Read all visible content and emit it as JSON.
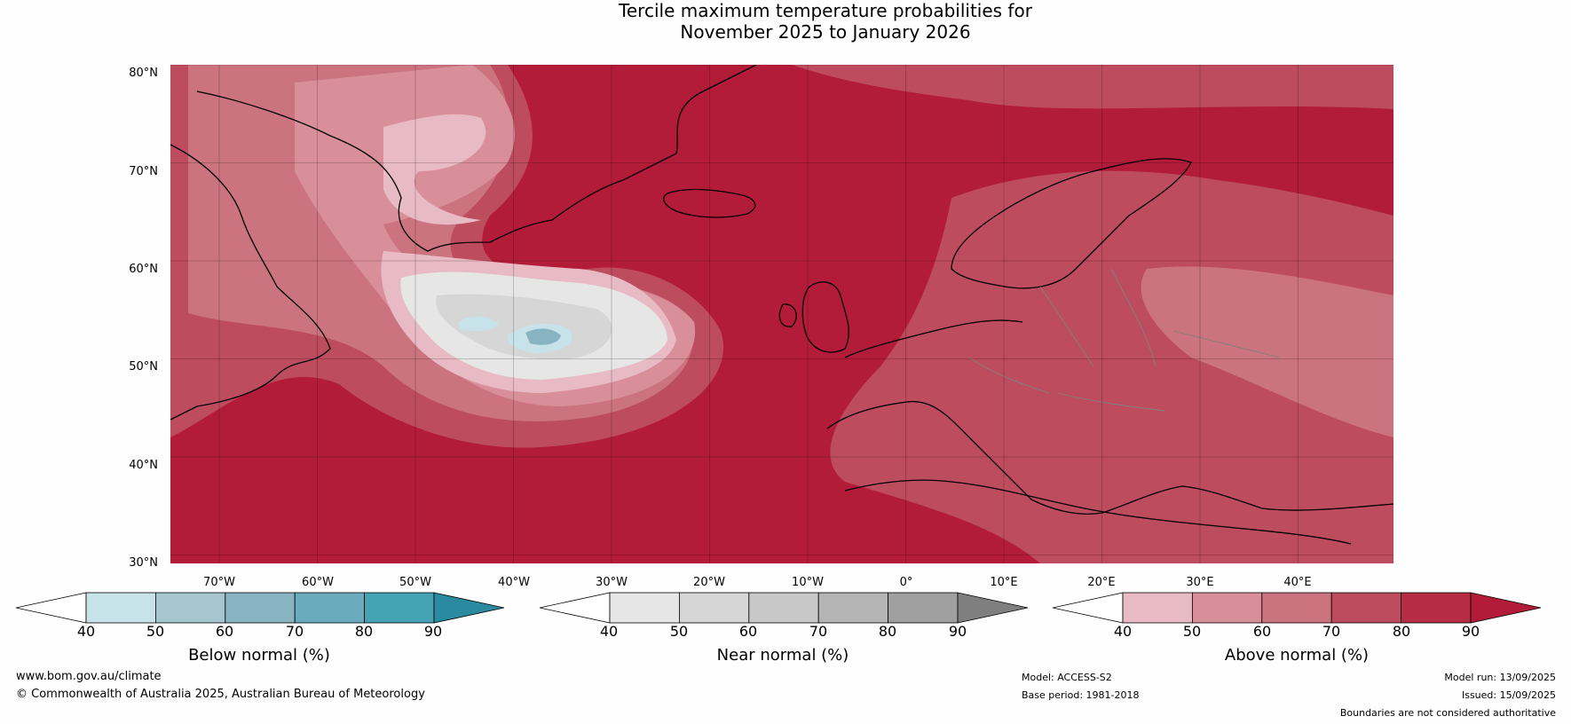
{
  "title": {
    "line1": "Tercile maximum temperature probabilities for",
    "line2": "November 2025 to January 2026"
  },
  "map": {
    "background_color": "#b31c39",
    "lat_labels": [
      "80°N",
      "70°N",
      "60°N",
      "50°N",
      "40°N",
      "30°N"
    ],
    "lon_labels": [
      "70°W",
      "60°W",
      "50°W",
      "40°W",
      "30°W",
      "20°W",
      "10°W",
      "0°",
      "10°E",
      "20°E",
      "30°E",
      "40°E"
    ]
  },
  "colorbars": [
    {
      "name": "below",
      "title": "Below normal (%)",
      "ticks": [
        "40",
        "50",
        "60",
        "70",
        "80",
        "90"
      ],
      "colors": [
        "#ffffff",
        "#c8e2ea",
        "#a5c6ce",
        "#88b3c0",
        "#6aacbd",
        "#46a3b3",
        "#2a8ba0"
      ]
    },
    {
      "name": "near",
      "title": "Near normal (%)",
      "ticks": [
        "40",
        "50",
        "60",
        "70",
        "80",
        "90"
      ],
      "colors": [
        "#ffffff",
        "#e6e6e6",
        "#d6d6d6",
        "#c8c8c8",
        "#b4b4b4",
        "#9f9f9f",
        "#7f7f7f"
      ]
    },
    {
      "name": "above",
      "title": "Above normal (%)",
      "ticks": [
        "40",
        "50",
        "60",
        "70",
        "80",
        "90"
      ],
      "colors": [
        "#ffffff",
        "#e8bac3",
        "#d88f9a",
        "#cb737f",
        "#bd4c5f",
        "#b62d43",
        "#b31c39"
      ]
    }
  ],
  "footer": {
    "website": "www.bom.gov.au/climate",
    "copyright": "© Commonwealth of Australia 2025, Australian Bureau of Meteorology",
    "model": "Model: ACCESS-S2",
    "base_period": "Base period: 1981-2018",
    "model_run": "Model run: 13/09/2025",
    "issued": "Issued: 15/09/2025",
    "disclaimer": "Boundaries are not considered authoritative"
  }
}
